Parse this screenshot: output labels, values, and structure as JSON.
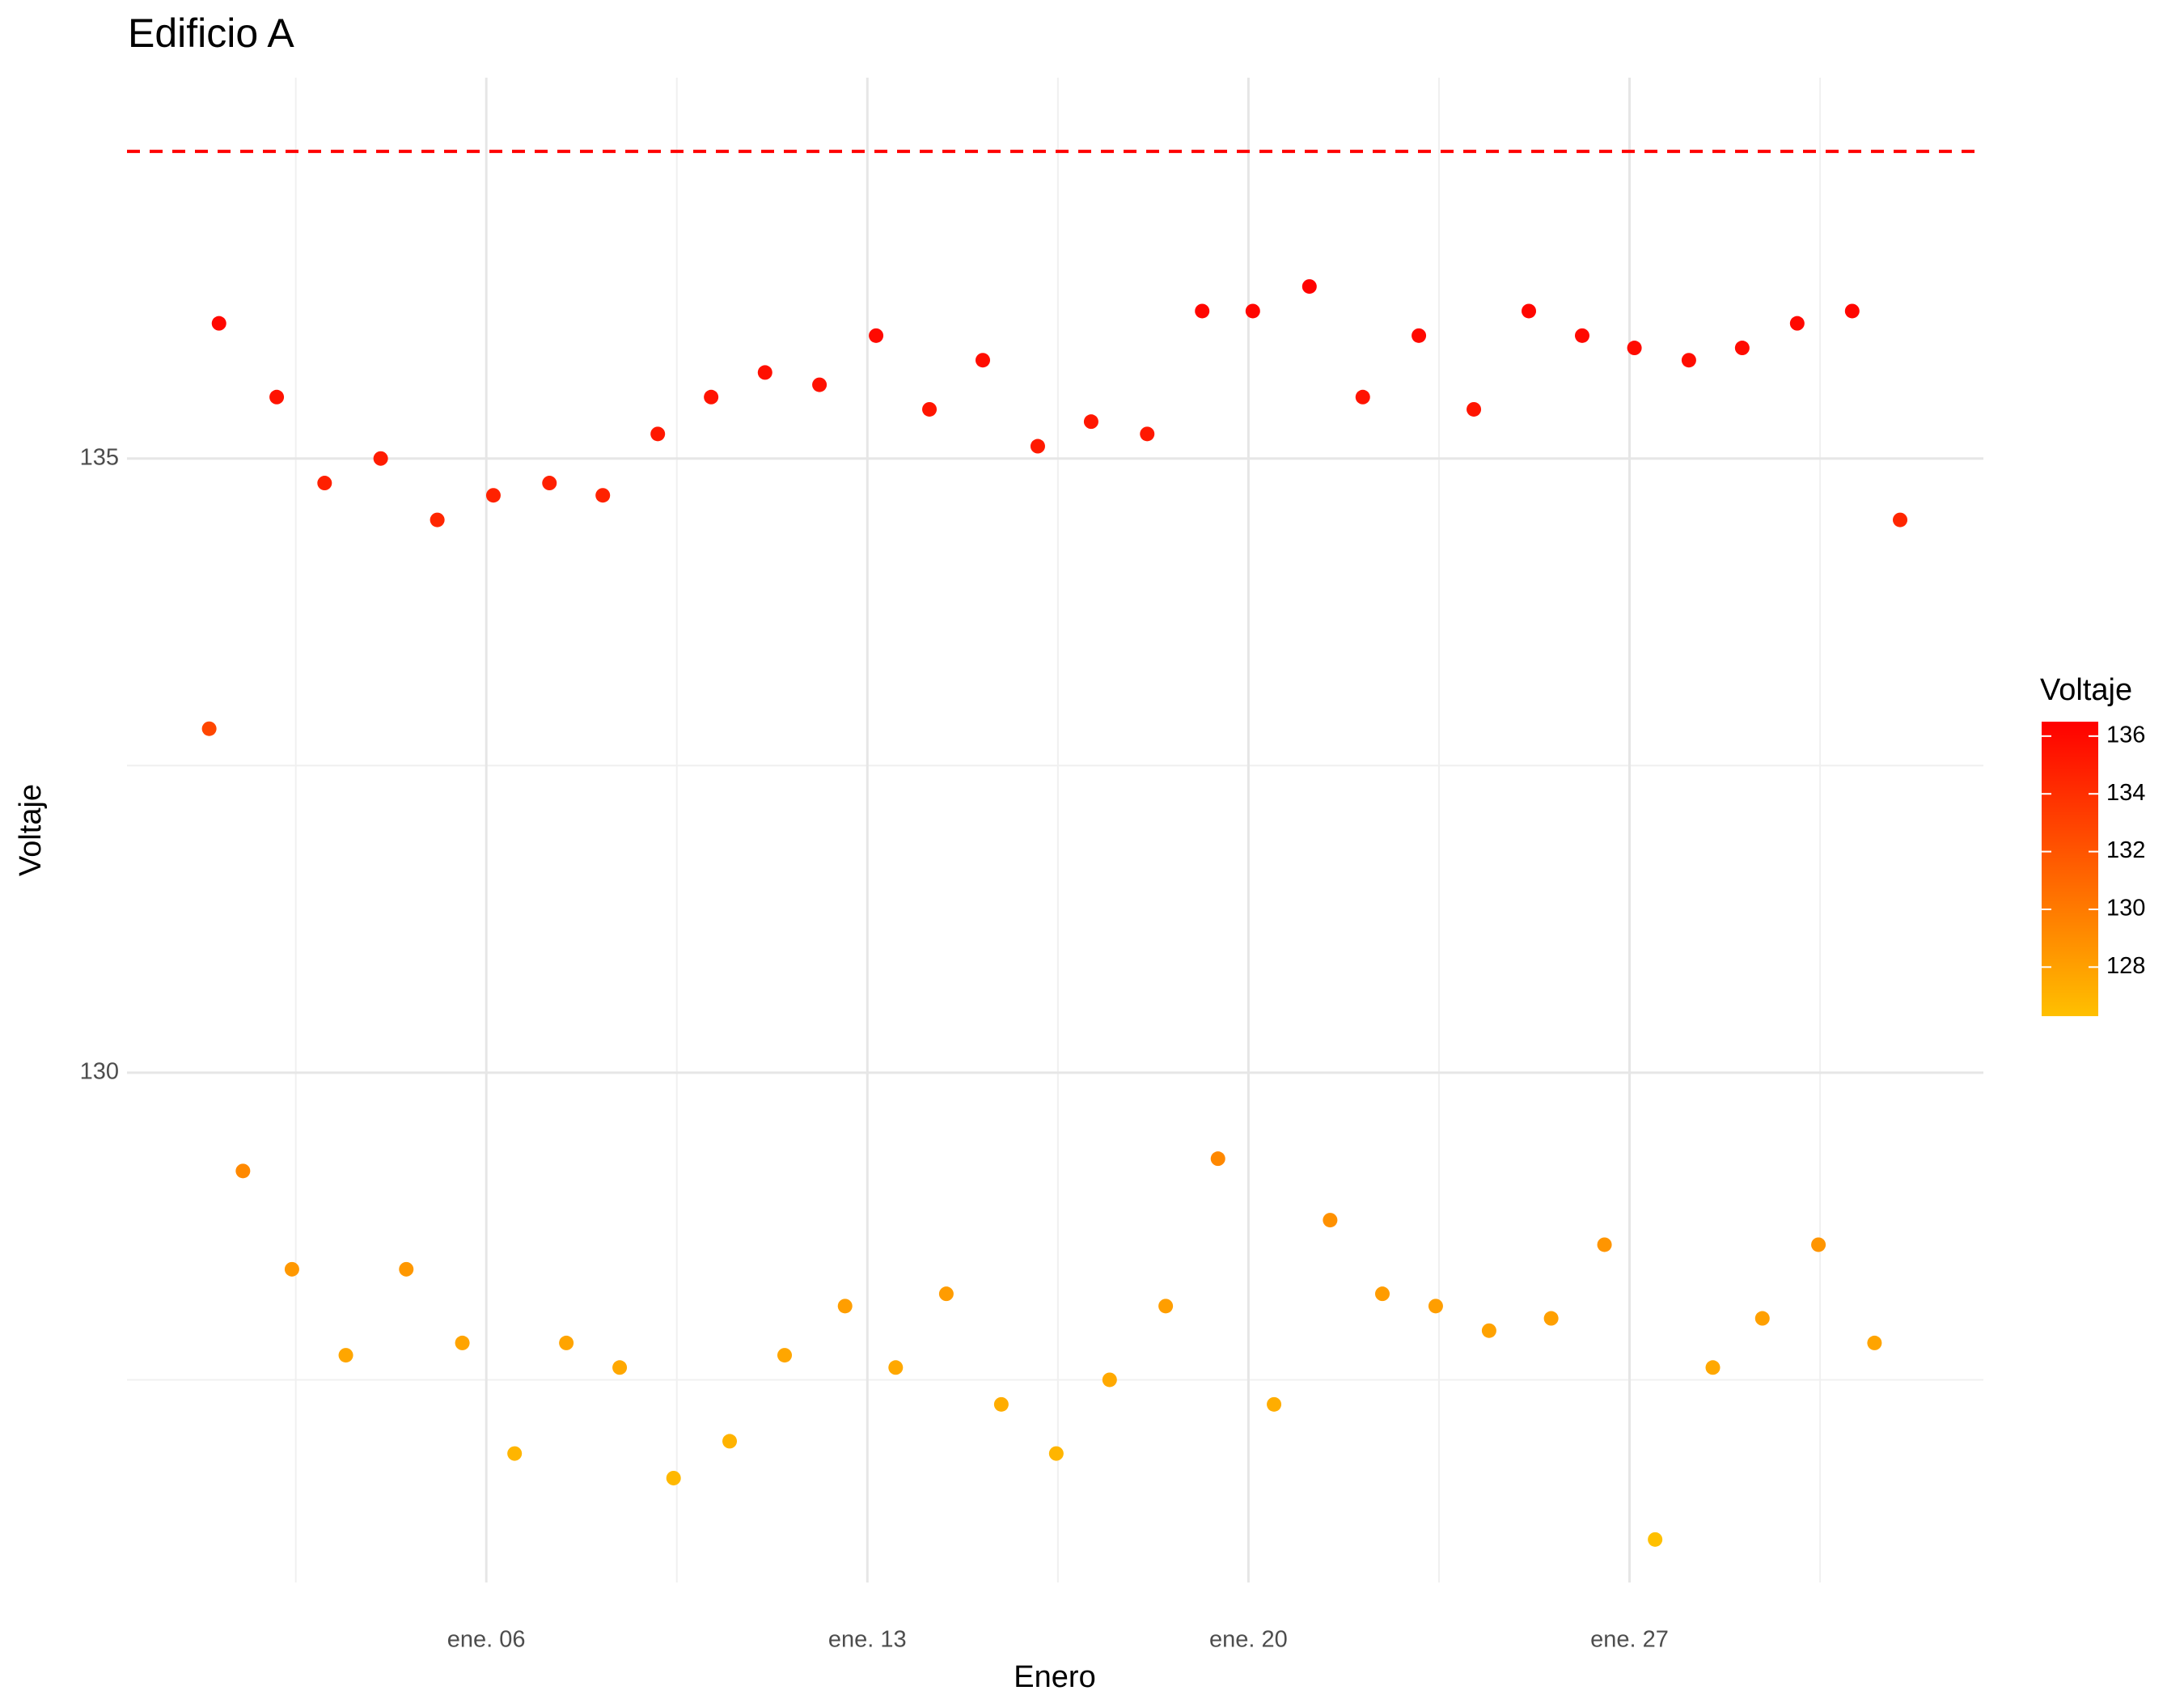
{
  "chart_data": {
    "type": "scatter",
    "title": "Edificio A",
    "x_label": "Enero",
    "y_label": "Voltaje",
    "legend_title": "Voltaje",
    "x": [
      0.91,
      1.09,
      1.53,
      2.15,
      2.43,
      3.03,
      3.42,
      4.06,
      4.53,
      5.1,
      5.56,
      6.13,
      6.52,
      7.16,
      7.47,
      8.14,
      8.45,
      9.15,
      9.44,
      10.13,
      10.47,
      11.12,
      11.48,
      12.12,
      12.59,
      13.16,
      13.52,
      14.14,
      14.45,
      15.12,
      15.46,
      16.13,
      16.47,
      17.11,
      17.45,
      18.14,
      18.48,
      19.15,
      19.44,
      20.08,
      20.47,
      21.12,
      21.5,
      22.1,
      22.46,
      23.13,
      23.44,
      24.14,
      24.42,
      25.15,
      25.56,
      26.13,
      26.54,
      27.09,
      27.47,
      28.09,
      28.53,
      29.07,
      29.44,
      30.08,
      30.47,
      31.09,
      31.5,
      31.97
    ],
    "y": [
      132.8,
      136.1,
      129.2,
      135.5,
      128.4,
      134.8,
      127.7,
      135.0,
      128.4,
      134.5,
      127.8,
      134.7,
      126.9,
      134.8,
      127.8,
      134.7,
      127.6,
      135.2,
      126.7,
      135.5,
      127.0,
      135.7,
      127.7,
      135.6,
      128.1,
      136.0,
      127.6,
      135.4,
      128.2,
      135.8,
      127.3,
      135.1,
      126.9,
      135.3,
      127.5,
      135.2,
      128.1,
      136.2,
      129.3,
      136.2,
      127.3,
      136.4,
      128.8,
      135.5,
      128.2,
      136.0,
      128.1,
      135.4,
      127.9,
      136.2,
      128.0,
      136.0,
      128.6,
      135.9,
      126.2,
      135.8,
      127.6,
      135.9,
      128.0,
      136.1,
      128.6,
      136.2,
      127.8,
      134.5
    ],
    "xlim": [
      -0.6,
      33.5
    ],
    "ylim": [
      125.85,
      138.1
    ],
    "xticks": [
      {
        "value": 6,
        "label": "ene. 06"
      },
      {
        "value": 13,
        "label": "ene. 13"
      },
      {
        "value": 20,
        "label": "ene. 20"
      },
      {
        "value": 27,
        "label": "ene. 27"
      }
    ],
    "x_minor_ticks": [
      2.5,
      9.5,
      16.5,
      23.5,
      30.5
    ],
    "yticks": [
      130,
      135
    ],
    "y_minor_ticks": [
      127.5,
      132.5
    ],
    "hline": 137.5,
    "hline_color": "#FF0000",
    "color_low": "#FFC000",
    "color_high": "#FF0000",
    "color_lim": [
      126.3,
      136.5
    ],
    "color_ticks": [
      128,
      130,
      132,
      134,
      136
    ],
    "grid": true
  }
}
